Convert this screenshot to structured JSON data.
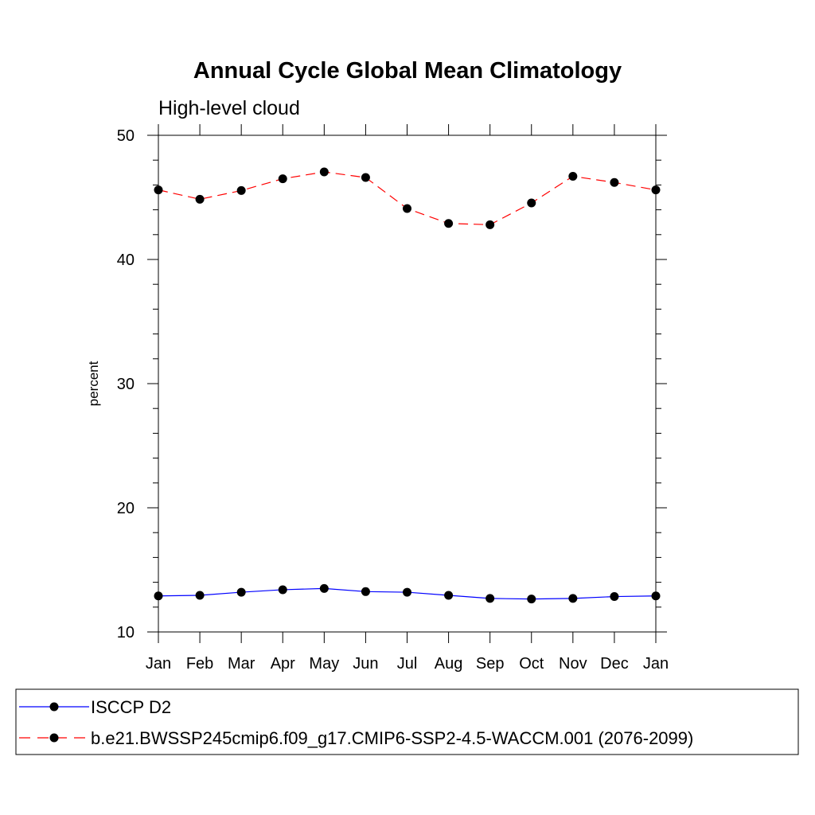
{
  "chart_data": {
    "type": "line",
    "title": "Annual Cycle Global Mean Climatology",
    "subtitle": "High-level cloud",
    "ylabel": "percent",
    "xlabel": "",
    "categories": [
      "Jan",
      "Feb",
      "Mar",
      "Apr",
      "May",
      "Jun",
      "Jul",
      "Aug",
      "Sep",
      "Oct",
      "Nov",
      "Dec",
      "Jan"
    ],
    "ylim": [
      10,
      50
    ],
    "yticks": [
      10,
      20,
      30,
      40,
      50
    ],
    "grid": false,
    "legend_position": "bottom",
    "series": [
      {
        "name": "ISCCP D2",
        "color": "#0000ff",
        "dash": "solid",
        "marker": "filled-circle",
        "values": [
          12.9,
          12.95,
          13.2,
          13.4,
          13.5,
          13.25,
          13.2,
          12.95,
          12.7,
          12.65,
          12.7,
          12.85,
          12.9
        ]
      },
      {
        "name": "b.e21.BWSSP245cmip6.f09_g17.CMIP6-SSP2-4.5-WACCM.001 (2076-2099)",
        "color": "#ff0000",
        "dash": "dashed",
        "marker": "filled-circle",
        "values": [
          45.6,
          44.85,
          45.55,
          46.5,
          47.05,
          46.6,
          44.1,
          42.9,
          42.8,
          44.55,
          46.7,
          46.2,
          45.6
        ]
      }
    ]
  }
}
